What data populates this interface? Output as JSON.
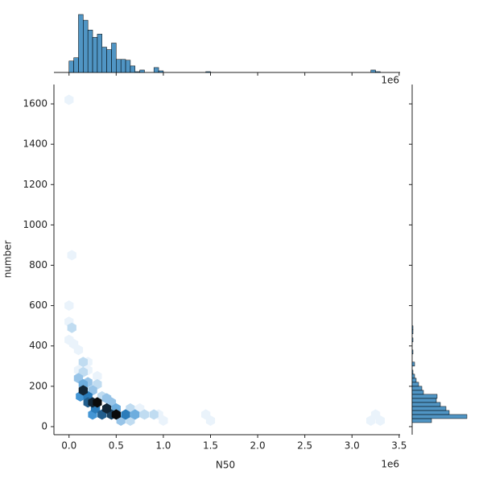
{
  "chart_data": [
    {
      "type": "hexbin",
      "x_label": "N50",
      "y_label": "number",
      "x_offset_label": "1e6",
      "xlim": [
        -0.16,
        3.51
      ],
      "ylim": [
        -40,
        1696
      ],
      "xticks": [
        {
          "value": 0,
          "label": "0.0"
        },
        0.5,
        {
          "value": 1,
          "label": "1.0"
        },
        1.5,
        {
          "value": 2,
          "label": "2.0"
        },
        2.5,
        {
          "value": 3,
          "label": "3.0"
        },
        3.5
      ],
      "yticks": [
        0,
        200,
        400,
        600,
        800,
        1000,
        1200,
        1400,
        1600
      ],
      "colors": [
        "#eaf3fb",
        "#2f8ad0",
        "#0a0a0a"
      ],
      "x": [
        0.0,
        0.03,
        0.0,
        0.0,
        0.03,
        0.0,
        0.05,
        0.1,
        0.15,
        0.2,
        0.1,
        0.15,
        0.2,
        0.3,
        0.1,
        0.15,
        0.2,
        0.3,
        0.25,
        0.15,
        0.2,
        0.12,
        0.25,
        0.3,
        0.2,
        0.28,
        0.4,
        0.35,
        0.45,
        0.5,
        0.4,
        0.35,
        0.6,
        0.55,
        0.5,
        0.65,
        0.7,
        0.65,
        0.8,
        0.75,
        0.9,
        1.0,
        0.95,
        1.45,
        1.5,
        3.2,
        3.25,
        3.3,
        0.25,
        0.45
      ],
      "y": [
        1620,
        850,
        600,
        520,
        490,
        430,
        410,
        380,
        320,
        320,
        280,
        270,
        280,
        250,
        240,
        210,
        220,
        210,
        180,
        180,
        150,
        150,
        120,
        120,
        120,
        90,
        90,
        60,
        60,
        60,
        140,
        150,
        60,
        30,
        90,
        90,
        60,
        30,
        60,
        90,
        60,
        30,
        60,
        60,
        30,
        30,
        60,
        30,
        60,
        120
      ],
      "counts": [
        1,
        1,
        1,
        1,
        2,
        1,
        1,
        1,
        2,
        1,
        1,
        2,
        1,
        1,
        3,
        4,
        3,
        2,
        3,
        9,
        6,
        5,
        9,
        10,
        7,
        6,
        9,
        7,
        8,
        10,
        3,
        2,
        6,
        3,
        4,
        2,
        4,
        2,
        2,
        1,
        2,
        1,
        1,
        1,
        1,
        1,
        1,
        1,
        5,
        3
      ]
    },
    {
      "type": "histogram",
      "orientation": "vertical",
      "color": "#1f77b4",
      "x_offset_label": "1e6",
      "bins": [
        0,
        0.05,
        0.1,
        0.15,
        0.2,
        0.25,
        0.3,
        0.35,
        0.4,
        0.45,
        0.5,
        0.55,
        0.6,
        0.65,
        0.7,
        0.75,
        0.8,
        0.85,
        0.9,
        0.95,
        1.0,
        1.05,
        1.1,
        1.15,
        1.2,
        1.25,
        1.3,
        1.35,
        1.4,
        1.45,
        1.5,
        1.55,
        1.6,
        1.65,
        1.7,
        1.75,
        1.8,
        1.85,
        1.9,
        1.95,
        2.0,
        2.05,
        2.1,
        2.15,
        2.2,
        2.25,
        2.3,
        2.35,
        2.4,
        2.45,
        2.5,
        2.55,
        2.6,
        2.65,
        2.7,
        2.75,
        2.8,
        2.85,
        2.9,
        2.95,
        3.0,
        3.05,
        3.1,
        3.15,
        3.2,
        3.25,
        3.3,
        3.35
      ],
      "counts": [
        14,
        18,
        71,
        64,
        52,
        43,
        47,
        31,
        28,
        36,
        16,
        16,
        15,
        8,
        1,
        3,
        0,
        0,
        6,
        2,
        0,
        0,
        0,
        0,
        0,
        0,
        0,
        0,
        0,
        1,
        0,
        0,
        0,
        0,
        0,
        0,
        0,
        0,
        0,
        0,
        0,
        0,
        0,
        0,
        0,
        0,
        0,
        0,
        0,
        0,
        0,
        0,
        0,
        0,
        0,
        0,
        0,
        0,
        0,
        0,
        0,
        0,
        0,
        0,
        3,
        1,
        0
      ]
    },
    {
      "type": "histogram",
      "orientation": "horizontal",
      "color": "#1f77b4",
      "bins": [
        20,
        40,
        60,
        80,
        100,
        120,
        140,
        160,
        180,
        200,
        220,
        240,
        260,
        280,
        300,
        320,
        340,
        360,
        380,
        400,
        420,
        440,
        460,
        480,
        500
      ],
      "counts": [
        24,
        68,
        46,
        42,
        35,
        30,
        31,
        14,
        12,
        8,
        5,
        3,
        1,
        0,
        3,
        0,
        0,
        1,
        0,
        0,
        1,
        0,
        1,
        1
      ]
    }
  ]
}
